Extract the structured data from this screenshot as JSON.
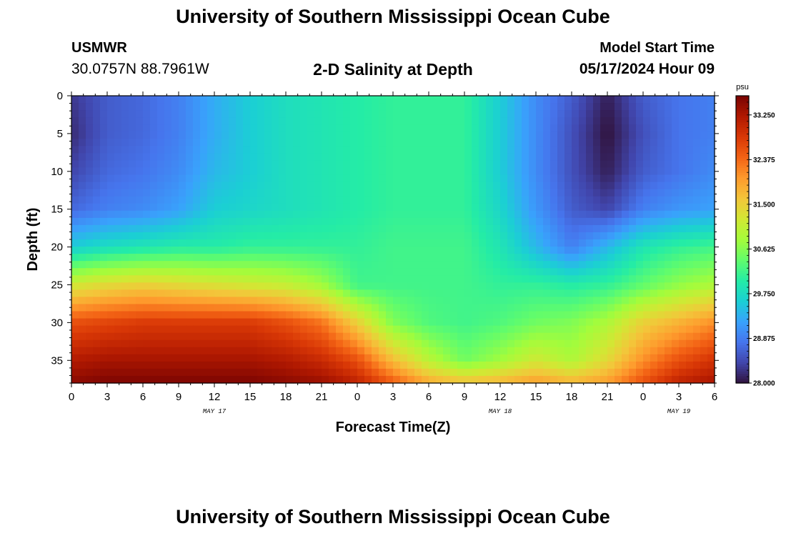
{
  "header": {
    "title": "University of Southern Mississippi Ocean Cube",
    "footer_title": "University of Southern Mississippi Ocean Cube",
    "station": "USMWR",
    "coords": "30.0757N  88.7961W",
    "plot_title": "2-D Salinity at Depth",
    "model_start_label": "Model Start Time",
    "model_start_value": "05/17/2024 Hour 09"
  },
  "colorbar": {
    "unit": "psu",
    "min": 28.0,
    "max": 33.625,
    "tick_labels": [
      "33.250",
      "32.375",
      "31.500",
      "30.625",
      "29.750",
      "28.875",
      "28.000"
    ],
    "tick_values": [
      33.25,
      32.375,
      31.5,
      30.625,
      29.75,
      28.875,
      28.0
    ],
    "colormap": [
      "#30123b",
      "#4145ab",
      "#4675ed",
      "#39a2fc",
      "#1bcfd4",
      "#24eca6",
      "#61fc6c",
      "#a4fc3b",
      "#d1e834",
      "#f3c63a",
      "#fe9b2d",
      "#f36315",
      "#d93806",
      "#b11901",
      "#7a0402"
    ]
  },
  "chart_data": {
    "type": "heatmap",
    "title": "2-D Salinity at Depth",
    "xlabel": "Forecast Time(Z)",
    "ylabel": "Depth (ft)",
    "x_range_hours": [
      0,
      54
    ],
    "y_range_ft": [
      0,
      38
    ],
    "y_ticks": [
      0,
      5,
      10,
      15,
      20,
      25,
      30,
      35
    ],
    "x_tick_labels": [
      "0",
      "3",
      "6",
      "9",
      "12",
      "15",
      "18",
      "21",
      "0",
      "3",
      "6",
      "9",
      "12",
      "15",
      "18",
      "21",
      "0",
      "3",
      "6"
    ],
    "date_labels": [
      {
        "text": "MAY 17",
        "hour": 12
      },
      {
        "text": "MAY 18",
        "hour": 36
      },
      {
        "text": "MAY 19",
        "hour": 51
      }
    ],
    "depths_ft": [
      0,
      5,
      10,
      15,
      20,
      25,
      30,
      35,
      38
    ],
    "times_h": [
      0,
      3,
      6,
      9,
      12,
      15,
      18,
      21,
      24,
      27,
      30,
      33,
      36,
      39,
      42,
      45,
      48,
      51,
      54
    ],
    "salinity_psu": [
      [
        28.3,
        28.6,
        28.7,
        28.9,
        29.3,
        29.6,
        29.8,
        29.9,
        30.0,
        30.1,
        30.1,
        30.1,
        29.6,
        29.0,
        28.6,
        28.1,
        28.6,
        28.8,
        28.9
      ],
      [
        28.2,
        28.6,
        28.7,
        28.9,
        29.3,
        29.6,
        29.8,
        29.9,
        30.0,
        30.1,
        30.1,
        30.1,
        29.6,
        29.0,
        28.5,
        28.0,
        28.5,
        28.8,
        28.9
      ],
      [
        28.4,
        28.7,
        28.8,
        29.0,
        29.4,
        29.6,
        29.8,
        29.9,
        30.0,
        30.1,
        30.1,
        30.1,
        29.6,
        29.0,
        28.5,
        28.1,
        28.6,
        28.8,
        29.0
      ],
      [
        28.7,
        28.9,
        29.0,
        29.2,
        29.6,
        29.7,
        29.8,
        29.9,
        30.0,
        30.1,
        30.1,
        30.1,
        29.7,
        29.1,
        28.6,
        28.4,
        28.9,
        29.1,
        29.2
      ],
      [
        29.6,
        29.8,
        29.9,
        30.0,
        30.0,
        30.1,
        30.1,
        30.1,
        30.1,
        30.2,
        30.2,
        30.2,
        29.9,
        29.4,
        28.9,
        29.4,
        29.9,
        30.1,
        30.2
      ],
      [
        31.2,
        31.4,
        31.5,
        31.4,
        31.3,
        31.2,
        31.1,
        30.8,
        30.2,
        30.2,
        30.2,
        30.2,
        30.1,
        30.1,
        30.0,
        30.1,
        30.4,
        30.7,
        30.9
      ],
      [
        32.6,
        32.7,
        32.8,
        32.8,
        32.8,
        32.8,
        32.6,
        32.3,
        31.5,
        30.6,
        30.3,
        30.2,
        30.3,
        30.5,
        30.6,
        30.9,
        31.5,
        31.8,
        32.1
      ],
      [
        33.2,
        33.3,
        33.3,
        33.3,
        33.3,
        33.3,
        33.2,
        33.0,
        32.6,
        31.7,
        31.0,
        30.5,
        30.8,
        31.2,
        30.9,
        31.4,
        32.1,
        32.6,
        32.9
      ],
      [
        33.5,
        33.6,
        33.6,
        33.6,
        33.6,
        33.6,
        33.5,
        33.4,
        33.1,
        32.5,
        31.9,
        31.7,
        31.8,
        32.0,
        31.8,
        32.0,
        32.6,
        33.1,
        33.3
      ]
    ]
  }
}
